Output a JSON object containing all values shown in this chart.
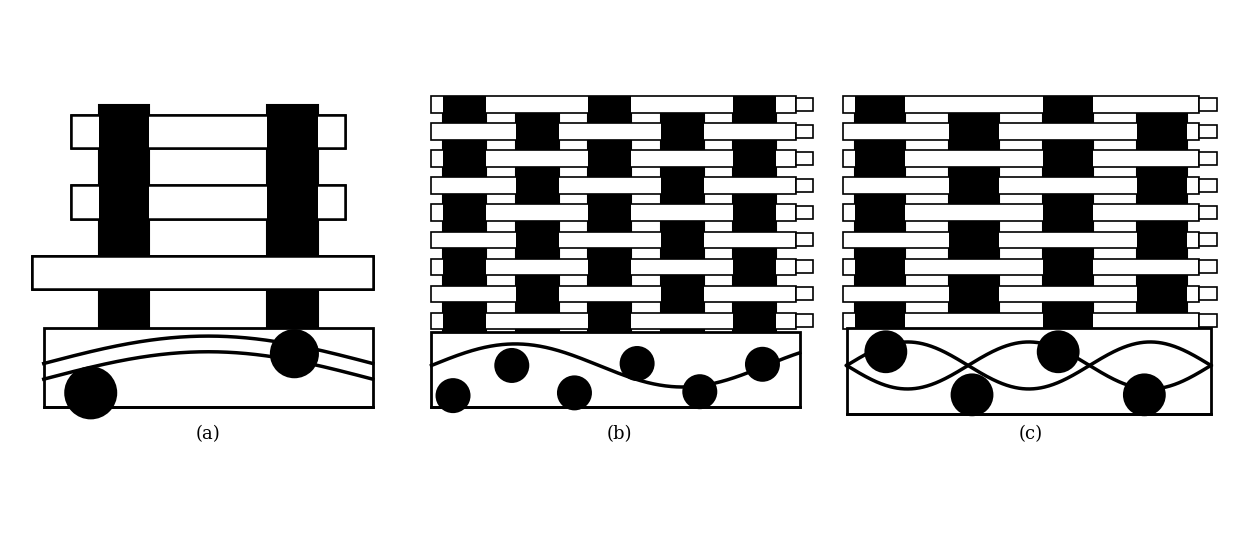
{
  "fig_width": 12.39,
  "fig_height": 5.5,
  "background": "#ffffff",
  "label_a": "(a)",
  "label_b": "(b)",
  "label_c": "(c)",
  "label_fontsize": 13
}
